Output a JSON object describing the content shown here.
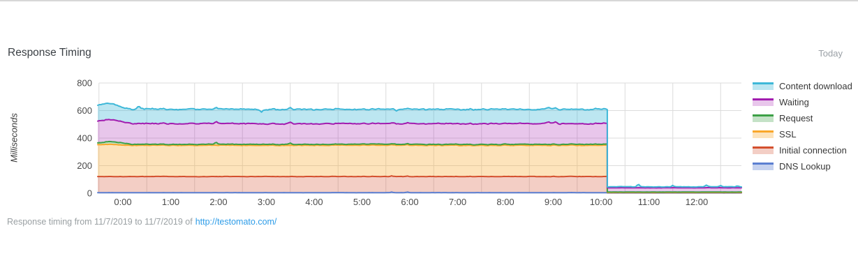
{
  "page": {
    "title": "Response Timing",
    "period_label": "Today",
    "footer": {
      "text": "Response timing from 11/7/2019 to 11/7/2019 of",
      "link": "http://testomato.com/"
    }
  },
  "chart_data": {
    "type": "area",
    "stacked": true,
    "title": "Response Timing",
    "ylabel": "Milliseconds",
    "ylim": [
      0,
      800
    ],
    "yticks": [
      800,
      600,
      400,
      200,
      0
    ],
    "xticks": [
      "0:00",
      "1:00",
      "2:00",
      "3:00",
      "4:00",
      "5:00",
      "6:00",
      "7:00",
      "8:00",
      "9:00",
      "10:00",
      "11:00",
      "12:00"
    ],
    "x_range_hours": [
      -0.52,
      12.94
    ],
    "grid": true,
    "grid_color": "#dcdcdc",
    "axis_text_color": "#4a4a4a",
    "legend_position": "right",
    "legend_order_series_indexes": [
      5,
      4,
      3,
      2,
      1,
      0
    ],
    "drop_time_label": "10:08",
    "drop_time_hours": 10.13,
    "stacked_levels_before_drop_ms": {
      "DNS Lookup": 4,
      "Initial connection": 121,
      "SSL": 348,
      "Request": 355,
      "Waiting": 505,
      "Content download": 609
    },
    "stacked_levels_after_drop_ms": {
      "DNS Lookup": 2,
      "Initial connection": 4.5,
      "SSL": 6,
      "Request": 8.5,
      "Waiting": 39.5,
      "Content download": 46.5
    },
    "series": [
      {
        "name": "DNS Lookup",
        "color": "#5b7fd1",
        "fill": "rgba(91,127,209,0.35)",
        "ms_before": 4,
        "ms_after": 2,
        "noise_before": 1,
        "noise_after": 0.3,
        "spikes": [
          {
            "t": 5.62,
            "a": 5,
            "w": 0.03
          },
          {
            "t": 5.95,
            "a": 4,
            "w": 0.03
          }
        ]
      },
      {
        "name": "Initial connection",
        "color": "#d4502e",
        "fill": "rgba(212,80,46,0.28)",
        "ms_before": 117,
        "ms_after": 2.5,
        "noise_before": 2,
        "noise_after": 0.3,
        "spikes": []
      },
      {
        "name": "SSL",
        "color": "#f9a72a",
        "fill": "rgba(249,167,42,0.32)",
        "ms_before": 227,
        "ms_after": 1.5,
        "noise_before": 3,
        "noise_after": 0.3,
        "spikes": [
          {
            "t": -0.3,
            "a": 6,
            "w": 0.3
          }
        ]
      },
      {
        "name": "Request",
        "color": "#3da047",
        "fill": "rgba(61,160,71,0.3)",
        "ms_before": 7,
        "ms_after": 2.5,
        "noise_before": 2.5,
        "noise_after": 0.5,
        "spikes": [
          {
            "t": -0.25,
            "a": 12,
            "w": 0.35
          },
          {
            "t": 1.95,
            "a": 13,
            "w": 0.035
          },
          {
            "t": 3.5,
            "a": 8,
            "w": 0.03
          }
        ]
      },
      {
        "name": "Waiting",
        "color": "#a21caf",
        "fill": "rgba(162,28,175,0.25)",
        "ms_before": 150,
        "ms_after": 31,
        "noise_before": 5,
        "noise_after": 1.6,
        "spikes": [
          {
            "t": -0.3,
            "a": 10,
            "w": 0.3
          },
          {
            "t": 8.9,
            "a": 14,
            "w": 0.05
          },
          {
            "t": 9.05,
            "a": 10,
            "w": 0.04
          }
        ]
      },
      {
        "name": "Content download",
        "color": "#3eb8d8",
        "fill": "rgba(62,184,216,0.35)",
        "ms_before": 104,
        "ms_after": 7,
        "noise_before": 5,
        "noise_after": 2.5,
        "spikes": [
          {
            "t": -0.35,
            "a": 14,
            "w": 0.25
          },
          {
            "t": 0.33,
            "a": 16,
            "w": 0.05
          },
          {
            "t": 2.9,
            "a": -16,
            "w": 0.04
          },
          {
            "t": 5.72,
            "a": -10,
            "w": 0.04
          },
          {
            "t": 10.78,
            "a": 18,
            "w": 0.035
          },
          {
            "t": 11.5,
            "a": 10,
            "w": 0.03
          },
          {
            "t": 12.2,
            "a": 12,
            "w": 0.035
          },
          {
            "t": 12.5,
            "a": 8,
            "w": 0.03
          },
          {
            "t": 12.85,
            "a": 7,
            "w": 0.03
          }
        ]
      }
    ]
  }
}
